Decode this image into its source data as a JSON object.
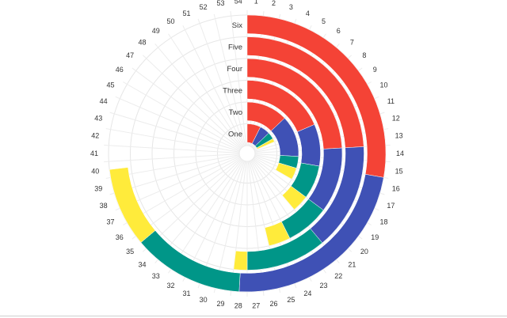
{
  "chart_data": {
    "type": "radial-bar",
    "categories": [
      "One",
      "Two",
      "Three",
      "Four",
      "Five",
      "Six"
    ],
    "angular_ticks": [
      "1",
      "2",
      "3",
      "4",
      "5",
      "6",
      "7",
      "8",
      "9",
      "10",
      "11",
      "12",
      "13",
      "14",
      "15",
      "16",
      "17",
      "18",
      "19",
      "20",
      "21",
      "22",
      "23",
      "24",
      "25",
      "26",
      "27",
      "28",
      "29",
      "30",
      "31",
      "32",
      "33",
      "34",
      "35",
      "36",
      "37",
      "38",
      "39",
      "40",
      "41",
      "42",
      "43",
      "44",
      "45",
      "46",
      "47",
      "48",
      "49",
      "50",
      "51",
      "52",
      "53",
      "54"
    ],
    "angular_max": 54,
    "grid": true,
    "legend": "none",
    "series": [
      {
        "color": "#f44336",
        "values": [
          4,
          7,
          10,
          13,
          13,
          15
        ]
      },
      {
        "color": "#3f51b5",
        "values": [
          3,
          7,
          5,
          6,
          8,
          12.5
        ]
      },
      {
        "color": "#009688",
        "values": [
          2,
          2,
          4,
          4,
          6,
          7
        ]
      },
      {
        "color": "#ffeb3b",
        "values": [
          1,
          2,
          2,
          2,
          1,
          5
        ]
      }
    ]
  }
}
